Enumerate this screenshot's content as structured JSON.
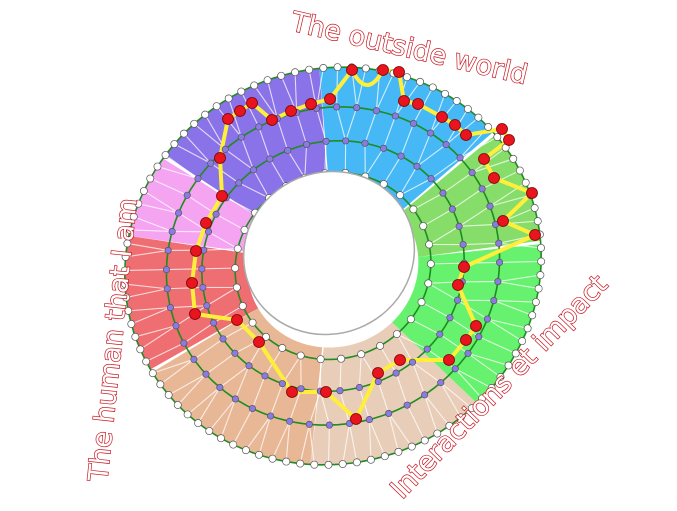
{
  "labels": {
    "top": "The outside world",
    "left": "The human that I am",
    "right": "Interactions et impact"
  },
  "colors": {
    "label_outline": "#c8141e",
    "ring_line": "#1e8c1e",
    "path": "#ffef3a",
    "path_node": "#e8141e",
    "middle_node": "#8a7ae6",
    "edge_node": "#ffffff",
    "sectors": [
      "#45b8f5",
      "#86dd6a",
      "#66f16e",
      "#e8cdb8",
      "#e8b896",
      "#ef6e72",
      "#f5a4f2",
      "#8a72e8"
    ]
  }
}
